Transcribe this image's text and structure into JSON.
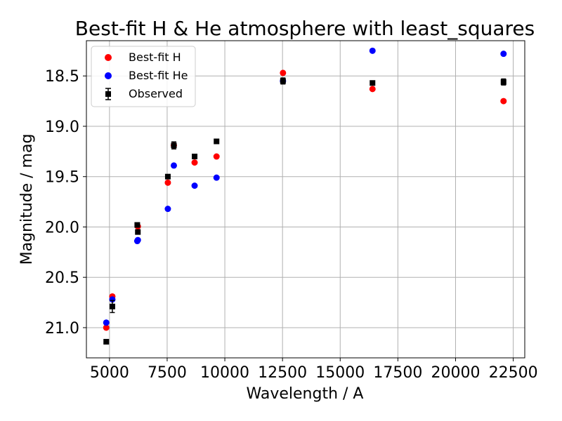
{
  "chart_data": {
    "type": "scatter",
    "title": "Best-fit H & He atmosphere with least_squares",
    "xlabel": "Wavelength / A",
    "ylabel": "Magnitude / mag",
    "xlim": [
      4000,
      23000
    ],
    "ylim": [
      21.3,
      18.15
    ],
    "y_inverted": true,
    "grid": true,
    "legend_position": "top-left",
    "x_ticks": [
      5000,
      7500,
      10000,
      12500,
      15000,
      17500,
      20000,
      22500
    ],
    "x_tick_labels": [
      "5000",
      "7500",
      "10000",
      "12500",
      "15000",
      "17500",
      "20000",
      "22500"
    ],
    "y_ticks": [
      18.5,
      19.0,
      19.5,
      20.0,
      20.5,
      21.0
    ],
    "y_tick_labels": [
      "18.5",
      "19.0",
      "19.5",
      "20.0",
      "20.5",
      "21.0"
    ],
    "series": [
      {
        "name": "Best-fit H",
        "color": "#ff0000",
        "marker": "circle",
        "x": [
          4860,
          5125,
          6230,
          7530,
          7790,
          8690,
          9640,
          12520,
          16400,
          22080
        ],
        "y": [
          21.0,
          20.69,
          19.995,
          19.56,
          19.19,
          19.36,
          19.3,
          18.47,
          18.63,
          18.75
        ]
      },
      {
        "name": "Best-fit He",
        "color": "#0000ff",
        "marker": "circle",
        "x": [
          4860,
          5125,
          6205,
          6230,
          7530,
          7790,
          8690,
          9640,
          12520,
          16400,
          22080
        ],
        "y": [
          20.95,
          20.72,
          20.14,
          20.13,
          19.82,
          19.39,
          19.59,
          19.51,
          18.55,
          18.25,
          18.28
        ]
      },
      {
        "name": "Observed",
        "color": "#000000",
        "marker": "square",
        "x": [
          4860,
          5125,
          6205,
          6230,
          7530,
          7790,
          8690,
          9640,
          12520,
          16400,
          22080
        ],
        "y": [
          21.14,
          20.79,
          19.98,
          20.05,
          19.5,
          19.19,
          19.3,
          19.15,
          18.55,
          18.57,
          18.56
        ],
        "yerr": [
          0.01,
          0.06,
          0.01,
          0.01,
          0.015,
          0.035,
          0.015,
          0.01,
          0.03,
          0.015,
          0.03
        ]
      }
    ]
  }
}
